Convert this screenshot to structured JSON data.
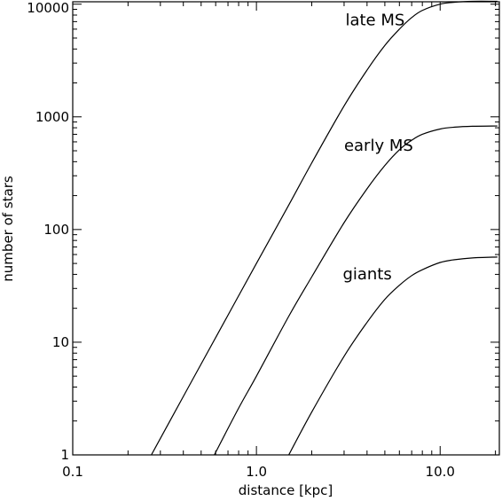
{
  "chart_data": {
    "type": "line",
    "xlabel": "distance [kpc]",
    "ylabel": "number of stars",
    "xscale": "log",
    "yscale": "log",
    "xlim": [
      0.1,
      21
    ],
    "ylim": [
      1,
      10500
    ],
    "grid": false,
    "xticks": [
      {
        "value": 0.1,
        "label": "0.1"
      },
      {
        "value": 1.0,
        "label": "1.0"
      },
      {
        "value": 10.0,
        "label": "10.0"
      }
    ],
    "yticks": [
      {
        "value": 1,
        "label": "1"
      },
      {
        "value": 10,
        "label": "10"
      },
      {
        "value": 100,
        "label": "100"
      },
      {
        "value": 1000,
        "label": "1000"
      },
      {
        "value": 10000,
        "label": "10000"
      }
    ],
    "series": [
      {
        "name": "late MS",
        "label_at": [
          3.05,
          6500
        ],
        "points": [
          [
            0.268,
            1
          ],
          [
            0.4,
            3.3
          ],
          [
            0.6,
            11
          ],
          [
            1.0,
            50
          ],
          [
            1.5,
            165
          ],
          [
            2.0,
            390
          ],
          [
            3.0,
            1250
          ],
          [
            4.0,
            2600
          ],
          [
            5.0,
            4300
          ],
          [
            6.0,
            6000
          ],
          [
            7.0,
            7600
          ],
          [
            8.0,
            8800
          ],
          [
            10.0,
            10000
          ],
          [
            12.0,
            10400
          ],
          [
            15.0,
            10600
          ],
          [
            20.5,
            10600
          ]
        ]
      },
      {
        "name": "early MS",
        "label_at": [
          3.0,
          500
        ],
        "points": [
          [
            0.59,
            1
          ],
          [
            0.8,
            2.6
          ],
          [
            1.0,
            5
          ],
          [
            1.5,
            17
          ],
          [
            2.0,
            38
          ],
          [
            3.0,
            115
          ],
          [
            4.0,
            230
          ],
          [
            5.0,
            370
          ],
          [
            6.0,
            510
          ],
          [
            7.0,
            620
          ],
          [
            8.0,
            700
          ],
          [
            10.0,
            780
          ],
          [
            12.0,
            810
          ],
          [
            15.0,
            825
          ],
          [
            20.5,
            830
          ]
        ]
      },
      {
        "name": "giants",
        "label_at": [
          2.95,
          36
        ],
        "points": [
          [
            1.5,
            1
          ],
          [
            2.0,
            2.4
          ],
          [
            3.0,
            7.5
          ],
          [
            4.0,
            15
          ],
          [
            5.0,
            24
          ],
          [
            6.0,
            32
          ],
          [
            7.0,
            39
          ],
          [
            8.0,
            44
          ],
          [
            10.0,
            51
          ],
          [
            12.0,
            54
          ],
          [
            15.0,
            56
          ],
          [
            20.5,
            57
          ]
        ]
      }
    ]
  }
}
